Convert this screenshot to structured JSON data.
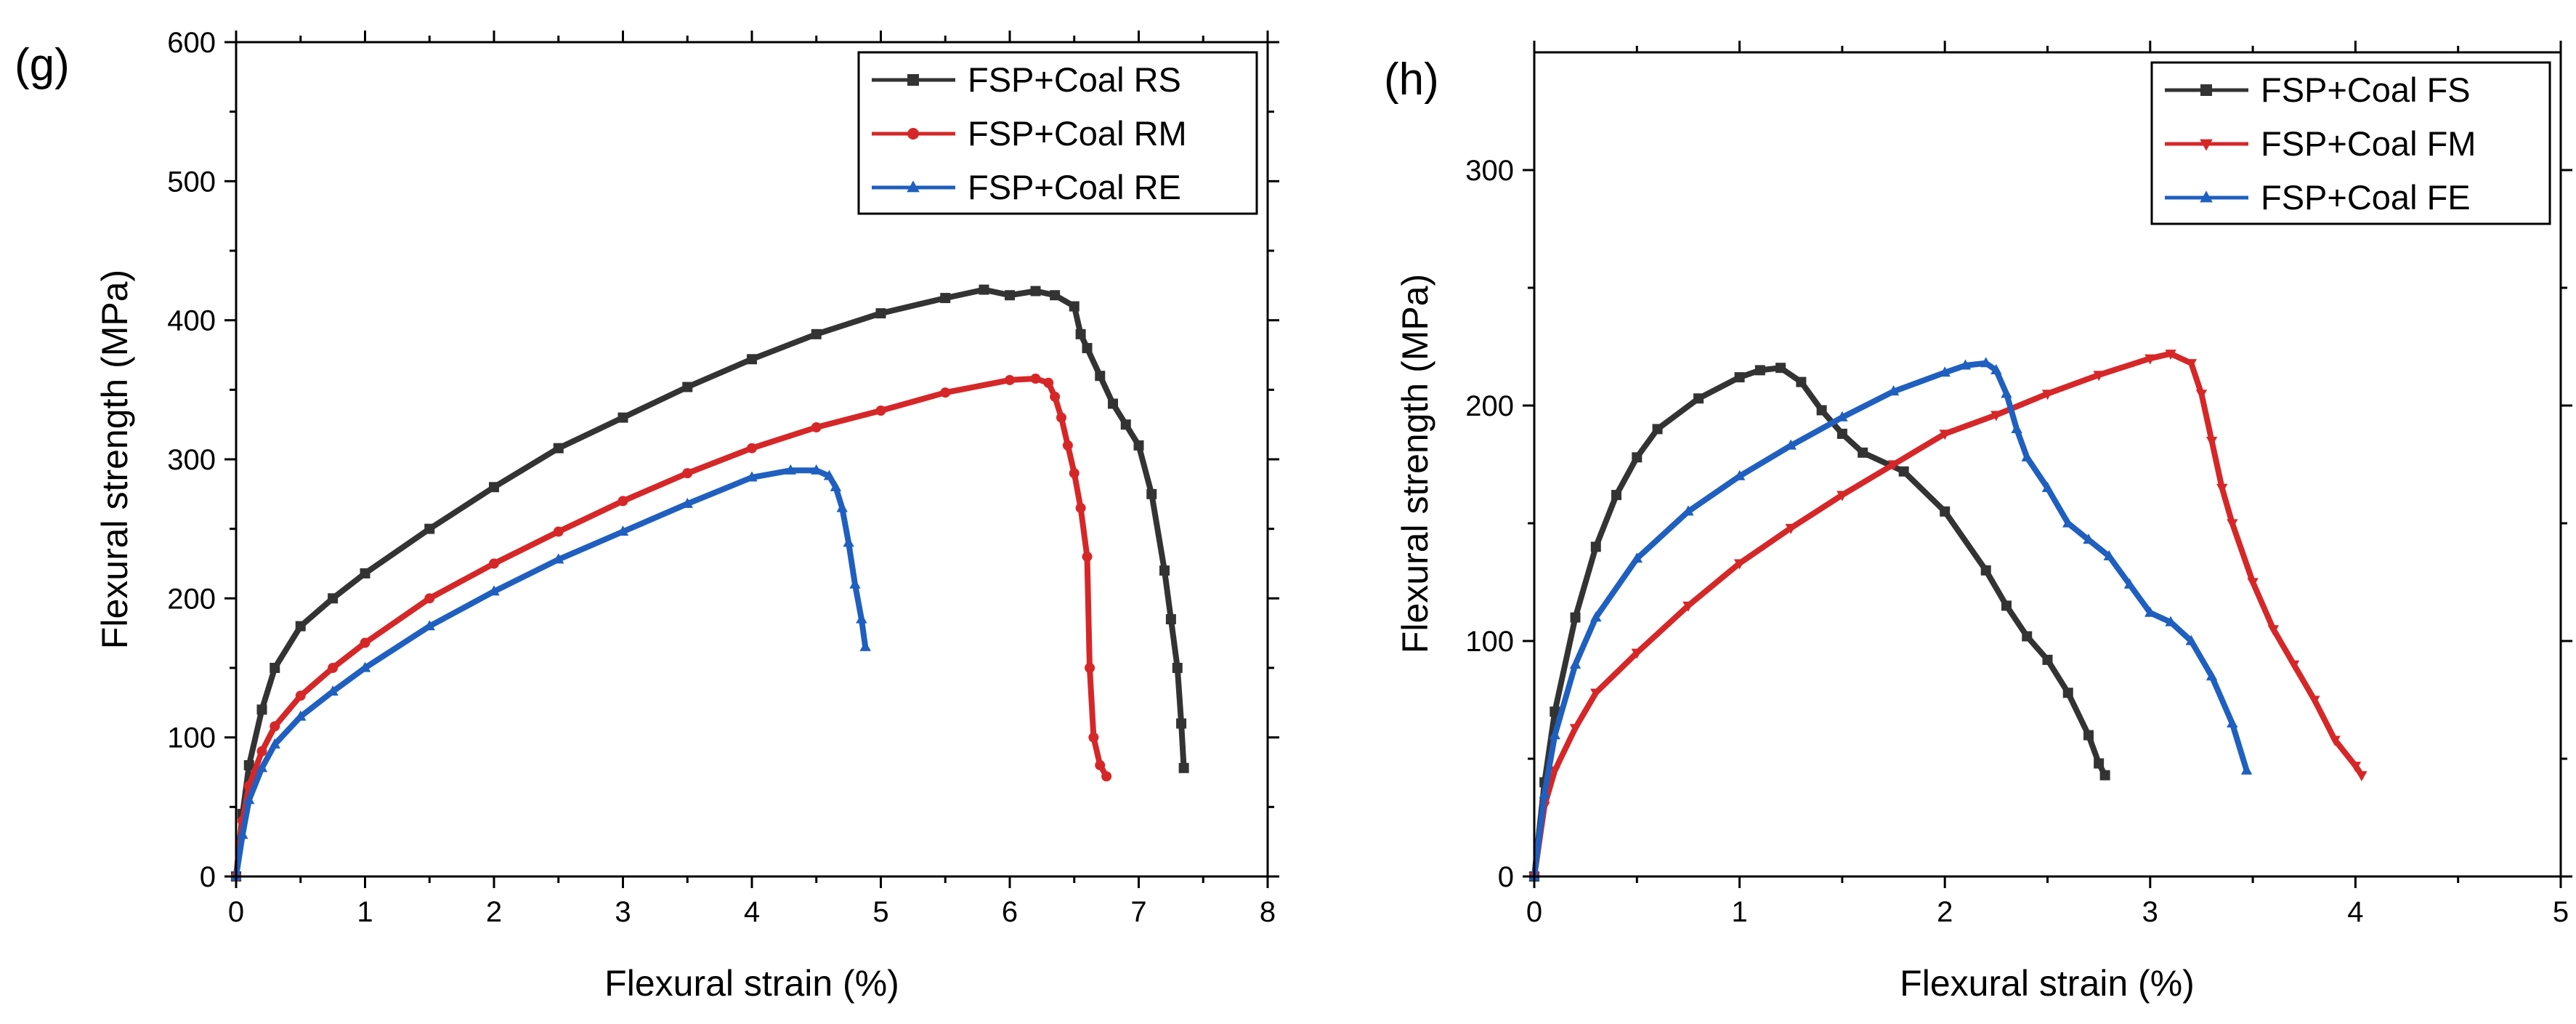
{
  "chart_data": [
    {
      "type": "line",
      "panel_label": "(g)",
      "xlabel": "Flexural strain (%)",
      "ylabel": "Flexural strength (MPa)",
      "xlim": [
        0,
        8
      ],
      "ylim": [
        0,
        600
      ],
      "xticks": [
        0,
        1,
        2,
        3,
        4,
        5,
        6,
        7,
        8
      ],
      "yticks": [
        0,
        100,
        200,
        300,
        400,
        500,
        600
      ],
      "legend_position": "top-right",
      "series": [
        {
          "name": "FSP+Coal RS",
          "color": "#333333",
          "marker": "square",
          "x": [
            0,
            0.05,
            0.1,
            0.2,
            0.3,
            0.5,
            0.75,
            1,
            1.5,
            2,
            2.5,
            3,
            3.5,
            4,
            4.5,
            5,
            5.5,
            5.8,
            6,
            6.2,
            6.35,
            6.5,
            6.55,
            6.6,
            6.7,
            6.8,
            6.9,
            7.0,
            7.1,
            7.2,
            7.25,
            7.3,
            7.33,
            7.35
          ],
          "y": [
            0,
            45,
            80,
            120,
            150,
            180,
            200,
            218,
            250,
            280,
            308,
            330,
            352,
            372,
            390,
            405,
            416,
            422,
            418,
            421,
            418,
            410,
            390,
            380,
            360,
            340,
            325,
            310,
            275,
            220,
            185,
            150,
            110,
            78
          ]
        },
        {
          "name": "FSP+Coal RM",
          "color": "#d62728",
          "marker": "circle",
          "x": [
            0,
            0.05,
            0.1,
            0.2,
            0.3,
            0.5,
            0.75,
            1,
            1.5,
            2,
            2.5,
            3,
            3.5,
            4,
            4.5,
            5,
            5.5,
            6,
            6.2,
            6.3,
            6.35,
            6.4,
            6.45,
            6.5,
            6.55,
            6.6,
            6.62,
            6.65,
            6.7,
            6.75
          ],
          "y": [
            0,
            40,
            65,
            90,
            108,
            130,
            150,
            168,
            200,
            225,
            248,
            270,
            290,
            308,
            323,
            335,
            348,
            357,
            358,
            355,
            345,
            330,
            310,
            290,
            265,
            230,
            150,
            100,
            80,
            72
          ]
        },
        {
          "name": "FSP+Coal RE",
          "color": "#1f5fbf",
          "marker": "triangle",
          "x": [
            0,
            0.05,
            0.1,
            0.2,
            0.3,
            0.5,
            0.75,
            1,
            1.5,
            2,
            2.5,
            3,
            3.5,
            4,
            4.3,
            4.5,
            4.6,
            4.65,
            4.7,
            4.75,
            4.8,
            4.85,
            4.88
          ],
          "y": [
            0,
            30,
            55,
            78,
            95,
            115,
            133,
            150,
            180,
            205,
            228,
            248,
            268,
            287,
            292,
            292,
            288,
            280,
            265,
            240,
            210,
            185,
            165
          ]
        }
      ]
    },
    {
      "type": "line",
      "panel_label": "(h)",
      "xlabel": "Flexural strain (%)",
      "ylabel": "Flexural strength (MPa)",
      "xlim": [
        0,
        5
      ],
      "ylim": [
        0,
        350
      ],
      "xticks": [
        0,
        1,
        2,
        3,
        4,
        5
      ],
      "yticks": [
        0,
        100,
        200,
        300
      ],
      "legend_position": "top-right",
      "series": [
        {
          "name": "FSP+Coal FS",
          "color": "#333333",
          "marker": "square",
          "x": [
            0,
            0.05,
            0.1,
            0.2,
            0.3,
            0.4,
            0.5,
            0.6,
            0.8,
            1.0,
            1.1,
            1.2,
            1.3,
            1.4,
            1.5,
            1.6,
            1.8,
            2.0,
            2.2,
            2.3,
            2.4,
            2.5,
            2.6,
            2.7,
            2.75,
            2.78
          ],
          "y": [
            0,
            40,
            70,
            110,
            140,
            162,
            178,
            190,
            203,
            212,
            215,
            216,
            210,
            198,
            188,
            180,
            172,
            155,
            130,
            115,
            102,
            92,
            78,
            60,
            48,
            43
          ]
        },
        {
          "name": "FSP+Coal FM",
          "color": "#d62728",
          "marker": "down-triangle",
          "x": [
            0,
            0.05,
            0.1,
            0.2,
            0.3,
            0.5,
            0.75,
            1.0,
            1.25,
            1.5,
            1.75,
            2.0,
            2.25,
            2.5,
            2.75,
            3.0,
            3.1,
            3.2,
            3.25,
            3.3,
            3.35,
            3.4,
            3.5,
            3.6,
            3.7,
            3.8,
            3.9,
            4.0,
            4.03
          ],
          "y": [
            0,
            30,
            45,
            63,
            78,
            95,
            115,
            133,
            148,
            162,
            175,
            188,
            196,
            205,
            213,
            220,
            222,
            218,
            205,
            185,
            165,
            150,
            125,
            105,
            90,
            75,
            58,
            47,
            43
          ]
        },
        {
          "name": "FSP+Coal FE",
          "color": "#1f5fbf",
          "marker": "triangle",
          "x": [
            0,
            0.05,
            0.1,
            0.2,
            0.3,
            0.5,
            0.75,
            1.0,
            1.25,
            1.5,
            1.75,
            2.0,
            2.1,
            2.2,
            2.25,
            2.3,
            2.35,
            2.4,
            2.5,
            2.6,
            2.7,
            2.8,
            2.9,
            3.0,
            3.1,
            3.2,
            3.3,
            3.4,
            3.47
          ],
          "y": [
            0,
            35,
            60,
            90,
            110,
            135,
            155,
            170,
            183,
            195,
            206,
            214,
            217,
            218,
            215,
            205,
            190,
            178,
            165,
            150,
            143,
            136,
            124,
            112,
            108,
            100,
            85,
            65,
            45
          ]
        }
      ]
    }
  ]
}
